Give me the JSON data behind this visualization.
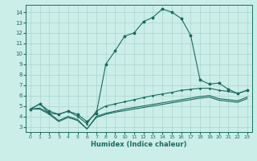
{
  "xlabel": "Humidex (Indice chaleur)",
  "xlim": [
    -0.5,
    23.5
  ],
  "ylim": [
    2.5,
    14.7
  ],
  "yticks": [
    3,
    4,
    5,
    6,
    7,
    8,
    9,
    10,
    11,
    12,
    13,
    14
  ],
  "xticks": [
    0,
    1,
    2,
    3,
    4,
    5,
    6,
    7,
    8,
    9,
    10,
    11,
    12,
    13,
    14,
    15,
    16,
    17,
    18,
    19,
    20,
    21,
    22,
    23
  ],
  "bg_color": "#cceee8",
  "line_color": "#1a6b60",
  "grid_color": "#aad4ce",
  "line1_y": [
    4.7,
    5.2,
    4.5,
    4.2,
    4.5,
    4.2,
    3.5,
    4.3,
    9.0,
    10.3,
    11.7,
    12.0,
    13.1,
    13.5,
    14.3,
    14.0,
    13.4,
    11.8,
    7.5,
    7.1,
    7.2,
    6.6,
    6.2,
    6.5
  ],
  "line2_y": [
    4.7,
    5.2,
    4.3,
    4.2,
    4.5,
    4.0,
    3.3,
    4.5,
    5.0,
    5.2,
    5.4,
    5.6,
    5.8,
    6.0,
    6.15,
    6.3,
    6.5,
    6.6,
    6.7,
    6.7,
    6.5,
    6.4,
    6.2,
    6.5
  ],
  "line3_y": [
    4.7,
    4.8,
    4.3,
    3.6,
    4.0,
    3.7,
    2.8,
    4.0,
    4.3,
    4.5,
    4.7,
    4.85,
    5.0,
    5.15,
    5.3,
    5.45,
    5.6,
    5.75,
    5.9,
    6.0,
    5.7,
    5.6,
    5.5,
    5.85
  ],
  "line4_y": [
    4.7,
    4.7,
    4.2,
    3.5,
    3.9,
    3.6,
    2.8,
    3.9,
    4.2,
    4.4,
    4.55,
    4.7,
    4.85,
    5.0,
    5.15,
    5.3,
    5.45,
    5.6,
    5.75,
    5.85,
    5.55,
    5.45,
    5.35,
    5.7
  ]
}
